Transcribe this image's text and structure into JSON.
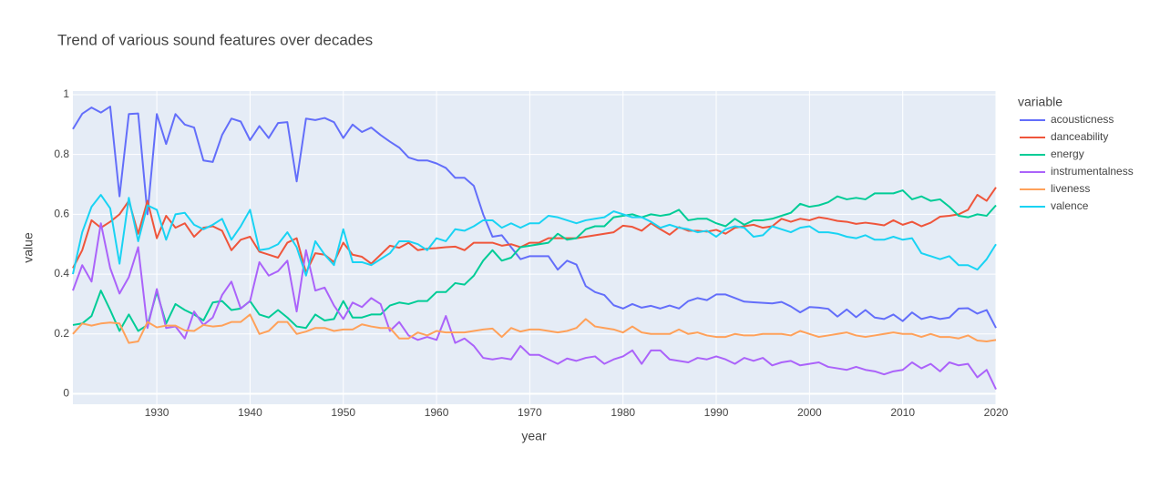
{
  "chart_data": {
    "type": "line",
    "title": "Trend of various sound features over decades",
    "x_label": "year",
    "y_label": "value",
    "legend_title": "variable",
    "x": [
      1921,
      1922,
      1923,
      1924,
      1925,
      1926,
      1927,
      1928,
      1929,
      1930,
      1931,
      1932,
      1933,
      1934,
      1935,
      1936,
      1937,
      1938,
      1939,
      1940,
      1941,
      1942,
      1943,
      1944,
      1945,
      1946,
      1947,
      1948,
      1949,
      1950,
      1951,
      1952,
      1953,
      1954,
      1955,
      1956,
      1957,
      1958,
      1959,
      1960,
      1961,
      1962,
      1963,
      1964,
      1965,
      1966,
      1967,
      1968,
      1969,
      1970,
      1971,
      1972,
      1973,
      1974,
      1975,
      1976,
      1977,
      1978,
      1979,
      1980,
      1981,
      1982,
      1983,
      1984,
      1985,
      1986,
      1987,
      1988,
      1989,
      1990,
      1991,
      1992,
      1993,
      1994,
      1995,
      1996,
      1997,
      1998,
      1999,
      2000,
      2001,
      2002,
      2003,
      2004,
      2005,
      2006,
      2007,
      2008,
      2009,
      2010,
      2011,
      2012,
      2013,
      2014,
      2015,
      2016,
      2017,
      2018,
      2019,
      2020
    ],
    "series": [
      {
        "name": "acousticness",
        "color": "#636efa",
        "values": [
          0.885,
          0.936,
          0.957,
          0.94,
          0.96,
          0.66,
          0.935,
          0.937,
          0.6,
          0.935,
          0.835,
          0.935,
          0.9,
          0.89,
          0.78,
          0.775,
          0.865,
          0.92,
          0.91,
          0.848,
          0.895,
          0.855,
          0.905,
          0.908,
          0.71,
          0.92,
          0.915,
          0.922,
          0.908,
          0.855,
          0.9,
          0.875,
          0.89,
          0.865,
          0.843,
          0.823,
          0.79,
          0.78,
          0.78,
          0.77,
          0.755,
          0.722,
          0.722,
          0.695,
          0.6,
          0.525,
          0.53,
          0.49,
          0.45,
          0.46,
          0.46,
          0.46,
          0.415,
          0.445,
          0.432,
          0.36,
          0.34,
          0.33,
          0.296,
          0.285,
          0.3,
          0.288,
          0.294,
          0.285,
          0.295,
          0.285,
          0.31,
          0.32,
          0.313,
          0.332,
          0.332,
          0.32,
          0.308,
          0.306,
          0.304,
          0.302,
          0.307,
          0.292,
          0.272,
          0.29,
          0.288,
          0.284,
          0.258,
          0.282,
          0.256,
          0.28,
          0.255,
          0.25,
          0.265,
          0.243,
          0.272,
          0.25,
          0.258,
          0.25,
          0.255,
          0.285,
          0.286,
          0.268,
          0.28,
          0.22
        ]
      },
      {
        "name": "danceability",
        "color": "#EF553B",
        "values": [
          0.42,
          0.48,
          0.58,
          0.555,
          0.575,
          0.6,
          0.645,
          0.535,
          0.645,
          0.52,
          0.595,
          0.555,
          0.57,
          0.525,
          0.555,
          0.56,
          0.545,
          0.48,
          0.515,
          0.525,
          0.475,
          0.465,
          0.455,
          0.505,
          0.52,
          0.405,
          0.47,
          0.465,
          0.44,
          0.505,
          0.465,
          0.458,
          0.435,
          0.465,
          0.495,
          0.488,
          0.505,
          0.48,
          0.485,
          0.487,
          0.49,
          0.492,
          0.48,
          0.505,
          0.505,
          0.505,
          0.495,
          0.5,
          0.49,
          0.505,
          0.505,
          0.52,
          0.52,
          0.52,
          0.52,
          0.525,
          0.53,
          0.535,
          0.54,
          0.562,
          0.558,
          0.545,
          0.57,
          0.55,
          0.532,
          0.557,
          0.545,
          0.545,
          0.542,
          0.548,
          0.535,
          0.555,
          0.56,
          0.565,
          0.555,
          0.56,
          0.585,
          0.575,
          0.585,
          0.58,
          0.59,
          0.585,
          0.578,
          0.575,
          0.568,
          0.572,
          0.568,
          0.563,
          0.58,
          0.565,
          0.575,
          0.56,
          0.572,
          0.592,
          0.595,
          0.6,
          0.615,
          0.665,
          0.645,
          0.69
        ]
      },
      {
        "name": "energy",
        "color": "#00cc96",
        "values": [
          0.23,
          0.235,
          0.26,
          0.345,
          0.28,
          0.21,
          0.265,
          0.21,
          0.23,
          0.34,
          0.235,
          0.3,
          0.28,
          0.265,
          0.245,
          0.305,
          0.31,
          0.28,
          0.285,
          0.31,
          0.265,
          0.255,
          0.28,
          0.255,
          0.225,
          0.22,
          0.265,
          0.245,
          0.25,
          0.31,
          0.255,
          0.255,
          0.265,
          0.265,
          0.295,
          0.305,
          0.3,
          0.31,
          0.31,
          0.34,
          0.34,
          0.37,
          0.365,
          0.395,
          0.445,
          0.48,
          0.445,
          0.455,
          0.49,
          0.495,
          0.5,
          0.505,
          0.535,
          0.515,
          0.52,
          0.55,
          0.56,
          0.56,
          0.59,
          0.595,
          0.6,
          0.59,
          0.6,
          0.595,
          0.6,
          0.615,
          0.58,
          0.585,
          0.585,
          0.57,
          0.56,
          0.585,
          0.565,
          0.58,
          0.58,
          0.585,
          0.595,
          0.605,
          0.635,
          0.625,
          0.63,
          0.64,
          0.66,
          0.65,
          0.655,
          0.65,
          0.67,
          0.67,
          0.67,
          0.68,
          0.65,
          0.66,
          0.645,
          0.65,
          0.625,
          0.595,
          0.59,
          0.6,
          0.595,
          0.63
        ]
      },
      {
        "name": "instrumentalness",
        "color": "#ab63fa",
        "values": [
          0.345,
          0.43,
          0.375,
          0.57,
          0.42,
          0.335,
          0.39,
          0.49,
          0.22,
          0.35,
          0.22,
          0.225,
          0.185,
          0.275,
          0.23,
          0.255,
          0.33,
          0.375,
          0.285,
          0.31,
          0.44,
          0.395,
          0.41,
          0.445,
          0.275,
          0.48,
          0.345,
          0.355,
          0.295,
          0.25,
          0.305,
          0.29,
          0.32,
          0.3,
          0.21,
          0.24,
          0.195,
          0.18,
          0.19,
          0.18,
          0.26,
          0.17,
          0.185,
          0.16,
          0.12,
          0.115,
          0.12,
          0.115,
          0.16,
          0.13,
          0.13,
          0.115,
          0.1,
          0.118,
          0.11,
          0.12,
          0.125,
          0.1,
          0.115,
          0.125,
          0.145,
          0.1,
          0.145,
          0.145,
          0.115,
          0.11,
          0.105,
          0.12,
          0.115,
          0.125,
          0.115,
          0.1,
          0.12,
          0.11,
          0.12,
          0.095,
          0.105,
          0.11,
          0.095,
          0.1,
          0.105,
          0.09,
          0.085,
          0.08,
          0.09,
          0.08,
          0.075,
          0.065,
          0.075,
          0.08,
          0.105,
          0.085,
          0.1,
          0.075,
          0.105,
          0.095,
          0.1,
          0.055,
          0.08,
          0.015
        ]
      },
      {
        "name": "liveness",
        "color": "#FFA15A",
        "values": [
          0.2,
          0.235,
          0.228,
          0.235,
          0.238,
          0.235,
          0.17,
          0.175,
          0.24,
          0.222,
          0.228,
          0.228,
          0.212,
          0.21,
          0.23,
          0.225,
          0.228,
          0.24,
          0.24,
          0.265,
          0.2,
          0.21,
          0.24,
          0.24,
          0.2,
          0.208,
          0.22,
          0.22,
          0.21,
          0.215,
          0.215,
          0.232,
          0.225,
          0.22,
          0.22,
          0.185,
          0.185,
          0.205,
          0.195,
          0.21,
          0.205,
          0.205,
          0.205,
          0.21,
          0.215,
          0.218,
          0.19,
          0.22,
          0.208,
          0.215,
          0.215,
          0.21,
          0.205,
          0.21,
          0.22,
          0.25,
          0.225,
          0.22,
          0.215,
          0.205,
          0.225,
          0.205,
          0.2,
          0.2,
          0.2,
          0.215,
          0.2,
          0.205,
          0.195,
          0.19,
          0.19,
          0.2,
          0.195,
          0.195,
          0.2,
          0.2,
          0.2,
          0.195,
          0.21,
          0.2,
          0.19,
          0.195,
          0.2,
          0.205,
          0.195,
          0.19,
          0.195,
          0.2,
          0.205,
          0.2,
          0.2,
          0.19,
          0.2,
          0.19,
          0.19,
          0.185,
          0.195,
          0.178,
          0.175,
          0.18
        ]
      },
      {
        "name": "valence",
        "color": "#19d3f3",
        "values": [
          0.4,
          0.54,
          0.625,
          0.665,
          0.62,
          0.435,
          0.655,
          0.51,
          0.63,
          0.615,
          0.515,
          0.6,
          0.605,
          0.565,
          0.55,
          0.565,
          0.585,
          0.515,
          0.56,
          0.615,
          0.48,
          0.485,
          0.5,
          0.54,
          0.49,
          0.395,
          0.51,
          0.465,
          0.43,
          0.55,
          0.44,
          0.44,
          0.43,
          0.45,
          0.47,
          0.51,
          0.51,
          0.5,
          0.48,
          0.52,
          0.51,
          0.55,
          0.545,
          0.56,
          0.58,
          0.58,
          0.555,
          0.57,
          0.555,
          0.57,
          0.57,
          0.595,
          0.59,
          0.58,
          0.57,
          0.58,
          0.585,
          0.59,
          0.61,
          0.6,
          0.59,
          0.59,
          0.575,
          0.555,
          0.565,
          0.555,
          0.55,
          0.54,
          0.545,
          0.525,
          0.55,
          0.56,
          0.555,
          0.525,
          0.53,
          0.56,
          0.55,
          0.54,
          0.555,
          0.56,
          0.54,
          0.54,
          0.535,
          0.525,
          0.52,
          0.53,
          0.515,
          0.515,
          0.525,
          0.515,
          0.52,
          0.47,
          0.46,
          0.45,
          0.46,
          0.43,
          0.43,
          0.415,
          0.45,
          0.5
        ]
      }
    ],
    "xlim": [
      1921,
      2020
    ],
    "xticks": [
      1930,
      1940,
      1950,
      1960,
      1970,
      1980,
      1990,
      2000,
      2010,
      2020
    ],
    "ylim": [
      -0.035,
      1.012
    ],
    "yticks": [
      0,
      0.2,
      0.4,
      0.6,
      0.8,
      1
    ],
    "grid": true,
    "legend": "right"
  }
}
